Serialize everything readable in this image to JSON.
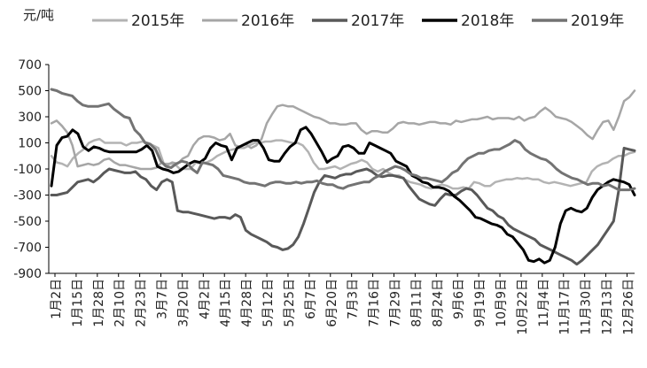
{
  "chart_data": {
    "type": "line",
    "unit_label": "元/吨",
    "ylim": [
      -900,
      700
    ],
    "y_ticks": [
      700,
      500,
      300,
      100,
      -100,
      -300,
      -500,
      -700,
      -900
    ],
    "grid": false,
    "legend_position": "top",
    "x_tick_labels": [
      "1月2日",
      "1月15日",
      "1月28日",
      "2月10日",
      "2月23日",
      "3月7日",
      "3月20日",
      "4月2日",
      "4月15日",
      "4月28日",
      "5月12日",
      "5月25日",
      "6月7日",
      "6月20日",
      "7月3日",
      "7月16日",
      "7月29日",
      "8月11日",
      "8月24日",
      "9月6日",
      "9月19日",
      "10月9日",
      "10月22日",
      "11月4日",
      "11月17日",
      "11月30日",
      "12月13日",
      "12月26日"
    ],
    "series": [
      {
        "name": "2015年",
        "color": "#b3b3b3",
        "width": 2.5,
        "values": [
          0,
          -50,
          -60,
          -80,
          -20,
          20,
          50,
          100,
          120,
          130,
          100,
          100,
          100,
          100,
          80,
          100,
          100,
          110,
          100,
          80,
          60,
          -60,
          -60,
          -60,
          -100,
          -100,
          -100,
          -50,
          -60,
          -50,
          -30,
          0,
          20,
          40,
          50,
          60,
          60,
          80,
          100,
          100,
          110,
          110,
          120,
          120,
          110,
          100,
          100,
          80,
          30,
          -50,
          -100,
          -100,
          -90,
          -80,
          -100,
          -80,
          -60,
          -50,
          -30,
          -50,
          -100,
          -120,
          -100,
          -130,
          -150,
          -150,
          -180,
          -200,
          -210,
          -220,
          -240,
          -250,
          -230,
          -220,
          -230,
          -250,
          -250,
          -240,
          -250,
          -200,
          -210,
          -230,
          -230,
          -200,
          -190,
          -180,
          -180,
          -170,
          -175,
          -170,
          -180,
          -180,
          -200,
          -210,
          -200,
          -210,
          -220,
          -230,
          -220,
          -210,
          -200,
          -120,
          -80,
          -60,
          -50,
          -20,
          0,
          0,
          20,
          30
        ]
      },
      {
        "name": "2016年",
        "color": "#a6a6a6",
        "width": 2.5,
        "values": [
          250,
          270,
          230,
          180,
          80,
          -80,
          -70,
          -60,
          -70,
          -60,
          -30,
          -20,
          -50,
          -70,
          -70,
          -80,
          -90,
          -100,
          -100,
          -100,
          -90,
          -50,
          -70,
          -50,
          -60,
          -20,
          0,
          80,
          130,
          150,
          150,
          140,
          120,
          130,
          170,
          80,
          70,
          90,
          60,
          80,
          130,
          250,
          320,
          380,
          390,
          380,
          380,
          360,
          340,
          320,
          300,
          290,
          270,
          250,
          250,
          240,
          240,
          250,
          250,
          200,
          170,
          190,
          190,
          180,
          180,
          210,
          250,
          260,
          250,
          250,
          240,
          250,
          260,
          260,
          250,
          250,
          240,
          270,
          260,
          270,
          280,
          280,
          290,
          300,
          280,
          290,
          290,
          290,
          280,
          300,
          270,
          290,
          300,
          340,
          370,
          340,
          300,
          290,
          280,
          260,
          230,
          200,
          160,
          130,
          200,
          260,
          270,
          200,
          300,
          420,
          450,
          500
        ]
      },
      {
        "name": "2017年",
        "color": "#595959",
        "width": 3,
        "values": [
          -300,
          -300,
          -290,
          -280,
          -240,
          -200,
          -190,
          -180,
          -200,
          -170,
          -130,
          -100,
          -110,
          -120,
          -130,
          -130,
          -120,
          -160,
          -180,
          -230,
          -260,
          -200,
          -180,
          -200,
          -420,
          -430,
          -430,
          -440,
          -450,
          -460,
          -470,
          -480,
          -470,
          -470,
          -480,
          -450,
          -470,
          -570,
          -600,
          -620,
          -640,
          -660,
          -690,
          -700,
          -720,
          -710,
          -680,
          -620,
          -520,
          -400,
          -280,
          -200,
          -150,
          -160,
          -170,
          -150,
          -140,
          -140,
          -120,
          -110,
          -100,
          -120,
          -150,
          -160,
          -150,
          -150,
          -160,
          -170,
          -230,
          -280,
          -330,
          -350,
          -370,
          -380,
          -330,
          -290,
          -300,
          -300,
          -270,
          -250,
          -260,
          -300,
          -350,
          -400,
          -420,
          -460,
          -480,
          -530,
          -560,
          -580,
          -600,
          -620,
          -640,
          -680,
          -700,
          -720,
          -740,
          -760,
          -780,
          -800,
          -830,
          -800,
          -760,
          -720,
          -680,
          -620,
          -560,
          -500,
          -260,
          60,
          50,
          40
        ]
      },
      {
        "name": "2018年",
        "color": "#000000",
        "width": 3,
        "values": [
          -230,
          80,
          140,
          150,
          200,
          170,
          70,
          40,
          70,
          60,
          40,
          30,
          30,
          30,
          30,
          30,
          30,
          50,
          80,
          40,
          -80,
          -100,
          -110,
          -130,
          -120,
          -90,
          -60,
          -40,
          -50,
          -20,
          60,
          100,
          80,
          70,
          -30,
          60,
          80,
          100,
          120,
          120,
          60,
          -30,
          -40,
          -40,
          20,
          70,
          100,
          200,
          220,
          170,
          100,
          30,
          -50,
          -20,
          0,
          70,
          80,
          60,
          20,
          20,
          100,
          80,
          60,
          40,
          20,
          -40,
          -60,
          -80,
          -150,
          -170,
          -200,
          -210,
          -240,
          -240,
          -250,
          -270,
          -310,
          -340,
          -380,
          -420,
          -470,
          -480,
          -500,
          -520,
          -530,
          -550,
          -600,
          -620,
          -670,
          -720,
          -800,
          -810,
          -790,
          -820,
          -800,
          -700,
          -520,
          -420,
          -400,
          -420,
          -430,
          -400,
          -320,
          -260,
          -230,
          -200,
          -180,
          -190,
          -200,
          -220,
          -300
        ]
      },
      {
        "name": "2019年",
        "color": "#737373",
        "width": 3,
        "values": [
          510,
          500,
          480,
          470,
          460,
          420,
          390,
          380,
          380,
          380,
          390,
          400,
          360,
          330,
          300,
          290,
          200,
          160,
          100,
          90,
          50,
          -40,
          -80,
          -90,
          -60,
          -40,
          -50,
          -100,
          -130,
          -50,
          -60,
          -70,
          -100,
          -150,
          -160,
          -170,
          -180,
          -200,
          -210,
          -210,
          -220,
          -230,
          -210,
          -200,
          -200,
          -210,
          -210,
          -200,
          -210,
          -200,
          -200,
          -190,
          -210,
          -220,
          -220,
          -240,
          -250,
          -230,
          -220,
          -210,
          -200,
          -200,
          -170,
          -150,
          -120,
          -100,
          -80,
          -90,
          -110,
          -140,
          -150,
          -170,
          -170,
          -180,
          -190,
          -200,
          -170,
          -130,
          -110,
          -60,
          -20,
          0,
          20,
          20,
          40,
          50,
          50,
          70,
          90,
          120,
          100,
          50,
          20,
          0,
          -20,
          -30,
          -60,
          -100,
          -130,
          -150,
          -170,
          -180,
          -200,
          -220,
          -210,
          -210,
          -230,
          -220,
          -240,
          -260,
          -260,
          -260,
          -250
        ]
      }
    ]
  }
}
